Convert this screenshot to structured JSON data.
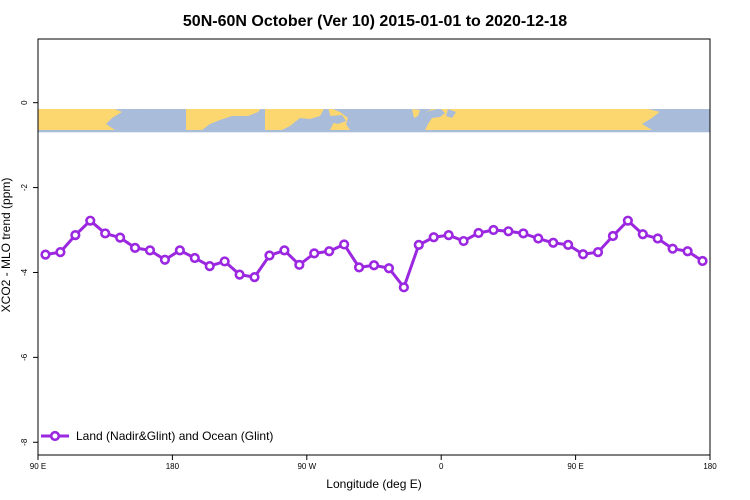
{
  "chart_data": {
    "type": "line",
    "title": "50N-60N October (Ver 10)   2015-01-01 to 2020-12-18",
    "xlabel": "Longitude (deg E)",
    "ylabel": "XCO2 - MLO trend (ppm)",
    "xlim": [
      90,
      540
    ],
    "ylim": [
      -8.3,
      1.5
    ],
    "x_ticks": [
      {
        "value": 90,
        "label": "90 E"
      },
      {
        "value": 180,
        "label": "180"
      },
      {
        "value": 270,
        "label": "90 W"
      },
      {
        "value": 360,
        "label": "0"
      },
      {
        "value": 450,
        "label": "90 E"
      },
      {
        "value": 540,
        "label": "180"
      }
    ],
    "y_ticks": [
      {
        "value": 0,
        "label": "0"
      },
      {
        "value": -2,
        "label": "-2"
      },
      {
        "value": -4,
        "label": "-4"
      },
      {
        "value": -6,
        "label": "-6"
      },
      {
        "value": -8,
        "label": "-8"
      }
    ],
    "map_strip": {
      "y_top": -0.15,
      "y_bottom": -0.7,
      "ocean_color": "#a9bcd9",
      "land_color": "#fcd770"
    },
    "series": [
      {
        "name": "Land (Nadir&Glint) and Ocean (Glint)",
        "color": "#9b27e0",
        "x": [
          95,
          105,
          115,
          125,
          135,
          145,
          155,
          165,
          175,
          185,
          195,
          205,
          215,
          225,
          235,
          245,
          255,
          265,
          275,
          285,
          295,
          305,
          315,
          325,
          335,
          345,
          355,
          365,
          375,
          385,
          395,
          405,
          415,
          425,
          435,
          445,
          455,
          465,
          475,
          485,
          495,
          505,
          515,
          525,
          535
        ],
        "y": [
          -3.58,
          -3.52,
          -3.12,
          -2.78,
          -3.08,
          -3.18,
          -3.42,
          -3.48,
          -3.7,
          -3.48,
          -3.66,
          -3.85,
          -3.74,
          -4.05,
          -4.11,
          -3.6,
          -3.48,
          -3.82,
          -3.55,
          -3.5,
          -3.34,
          -3.88,
          -3.83,
          -3.9,
          -4.35,
          -3.35,
          -3.17,
          -3.12,
          -3.26,
          -3.07,
          -3.0,
          -3.03,
          -3.08,
          -3.2,
          -3.3,
          -3.35,
          -3.57,
          -3.52,
          -3.14,
          -2.78,
          -3.1,
          -3.2,
          -3.44,
          -3.5,
          -3.73
        ]
      }
    ],
    "legend_position": "bottom-left"
  }
}
